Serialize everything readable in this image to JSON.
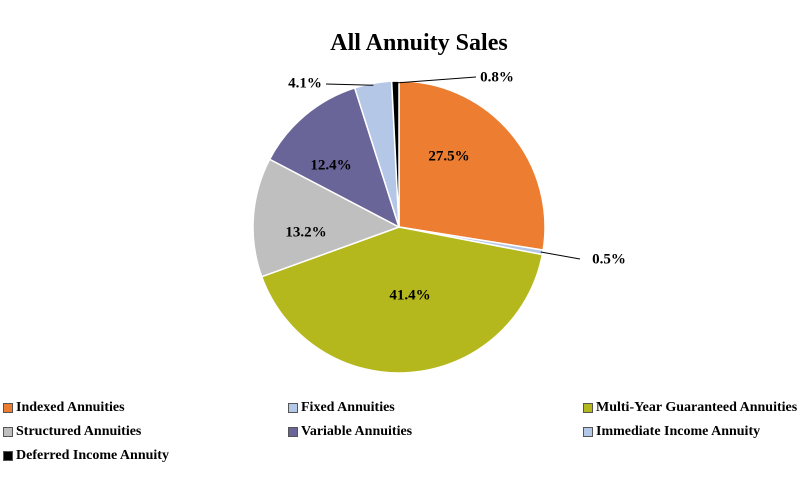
{
  "chart_data": {
    "type": "pie",
    "title": "All Annuity Sales",
    "slices": [
      {
        "name": "Indexed Annuities",
        "value": 27.5,
        "label": "27.5%",
        "color": "#ED7D31"
      },
      {
        "name": "Fixed Annuities",
        "value": 0.5,
        "label": "0.5%",
        "color": "#B4C7E7"
      },
      {
        "name": "Multi-Year Guaranteed Annuities",
        "value": 41.4,
        "label": "41.4%",
        "color": "#B5B81D"
      },
      {
        "name": "Structured Annuities",
        "value": 13.2,
        "label": "13.2%",
        "color": "#BFBFBF"
      },
      {
        "name": "Variable Annuities",
        "value": 12.4,
        "label": "12.4%",
        "color": "#6A6599"
      },
      {
        "name": "Immediate Income Annuity",
        "value": 4.1,
        "label": "4.1%",
        "color": "#B4C7E7"
      },
      {
        "name": "Deferred Income Annuity",
        "value": 0.8,
        "label": "0.8%",
        "color": "#000000"
      }
    ],
    "legend_position": "bottom"
  }
}
